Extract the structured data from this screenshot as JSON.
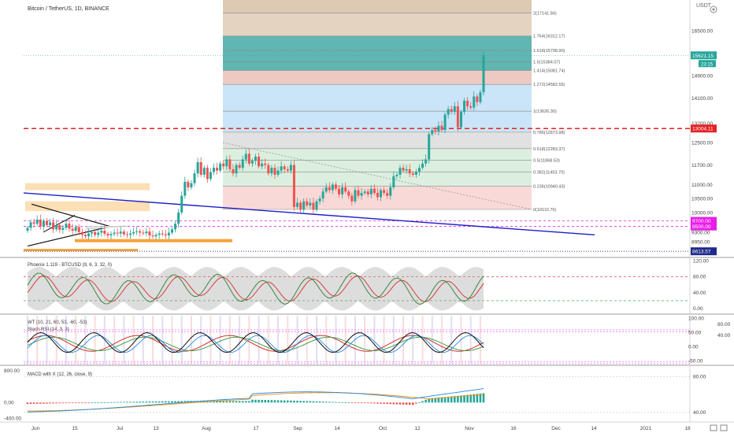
{
  "header": {
    "symbol": "Bitcoin / TetherUS, 1D, BINANCE",
    "currency": "USDT"
  },
  "colors": {
    "up": "#26a69a",
    "down": "#ef5350",
    "trend": "#1e1ec8",
    "fib_top": "#d8c0a6",
    "fib_teal": "#2a9d98",
    "fib_blue": "#b3d9f5",
    "fib_gray": "#d4d4d4",
    "fib_green": "#cde8d2",
    "fib_red": "#f7c9c6",
    "orange": "#f5a23a",
    "magenta": "#e91ee9",
    "navy": "#1f2a8a",
    "redline": "#e52222"
  },
  "chart_data": [
    {
      "type": "candlestick",
      "title": "Bitcoin / TetherUS, 1D, BINANCE",
      "x_ticks": [
        "Jun",
        "15",
        "Jul",
        "13",
        "Aug",
        "17",
        "Sep",
        "14",
        "Oct",
        "12",
        "Nov",
        "16",
        "Dec",
        "14",
        "2021",
        "18"
      ],
      "y_ticks": [
        16500,
        15621.15,
        14900,
        14100,
        13200,
        12500,
        11700,
        11000,
        10500,
        10000,
        9700,
        9500,
        9300,
        8950,
        8613.57
      ],
      "ylim": [
        8450,
        17600
      ],
      "last_price": 15621.15,
      "countdown": "23:15",
      "price_tags": [
        {
          "value": "15621.15",
          "color": "#26a69a"
        },
        {
          "value": "13004.11",
          "color": "#e52222"
        },
        {
          "value": "9700.00",
          "color": "#e91ee9"
        },
        {
          "value": "9500.00",
          "color": "#e91ee9"
        },
        {
          "value": "8613.57",
          "color": "#1f2a8a"
        }
      ],
      "fib_levels": [
        {
          "label": "2(17141.84)",
          "value": 17141.84
        },
        {
          "label": "1.764(16312.17)",
          "value": 16312.17
        },
        {
          "label": "1.618(15798.90)",
          "value": 15798.9
        },
        {
          "label": "1.5(15384.07)",
          "value": 15384.07
        },
        {
          "label": "1.414(15081.74)",
          "value": 15081.74
        },
        {
          "label": "1.272(14582.55)",
          "value": 14582.55
        },
        {
          "label": "1(13626.30)",
          "value": 13626.3
        },
        {
          "label": "0.786(12873.98)",
          "value": 12873.98
        },
        {
          "label": "0.618(12283.37)",
          "value": 12283.37
        },
        {
          "label": "0.5(11868.53)",
          "value": 11868.53
        },
        {
          "label": "0.382(11453.70)",
          "value": 11453.7
        },
        {
          "label": "0.236(10940.43)",
          "value": 10940.43
        },
        {
          "label": "0(10110.76)",
          "value": 10110.76
        }
      ],
      "close": [
        9450,
        9650,
        9600,
        9750,
        9500,
        9700,
        9550,
        9650,
        9400,
        9550,
        9380,
        9450,
        9600,
        9420,
        9350,
        9480,
        9300,
        9200,
        9150,
        9250,
        9300,
        9200,
        9280,
        9350,
        9240,
        9180,
        9230,
        9280,
        9250,
        9320,
        9220,
        9200,
        9250,
        9300,
        9330,
        9280,
        9260,
        9320,
        9180,
        9150,
        9200,
        9250,
        9220,
        9180,
        9280,
        9400,
        9600,
        10000,
        10600,
        11100,
        10900,
        11050,
        11400,
        11800,
        11350,
        11600,
        11200,
        11450,
        11600,
        11500,
        11750,
        11650,
        11900,
        11550,
        11400,
        11700,
        11600,
        11900,
        12100,
        11750,
        11850,
        12000,
        11650,
        11750,
        11700,
        11400,
        11600,
        11350,
        11500,
        11650,
        11550,
        11500,
        11700,
        10200,
        10350,
        10100,
        10400,
        10250,
        10350,
        10100,
        10400,
        10500,
        10750,
        10900,
        10800,
        11000,
        10850,
        10650,
        10900,
        10750,
        10600,
        10400,
        10800,
        10600,
        10700,
        10750,
        10650,
        10850,
        10700,
        10550,
        10800,
        10700,
        10600,
        10900,
        11300,
        11350,
        11600,
        11500,
        11550,
        11400,
        11350,
        11450,
        11600,
        11750,
        11900,
        12800,
        12950,
        12900,
        13100,
        12950,
        13500,
        13700,
        13600,
        13800,
        13050,
        13600,
        14000,
        13800,
        13750,
        14150,
        13950,
        14300,
        15621.15
      ],
      "indicators": [
        {
          "name": "Phoenix 1.119 - BTCUSD (9, 6, 3, 32, 0)",
          "y_ticks": [
            "120.00",
            "80.00",
            "40.00",
            "0.00"
          ]
        },
        {
          "name": "WT (10, 21, 60, 53, -60, -53)",
          "sub": "Stoch RSI (14, 3, 3)",
          "y_ticks": [
            "100.00",
            "50.00",
            "0.00",
            "-50.00"
          ],
          "y_ticks2": [
            "80.00",
            "40.00"
          ]
        },
        {
          "name": "MACD with X (12, 26, close, 9)",
          "y_ticks": [
            "800.00",
            "0.00",
            "-400.00"
          ],
          "y_ticks2": [
            "80.00",
            "40.00"
          ]
        }
      ]
    }
  ]
}
